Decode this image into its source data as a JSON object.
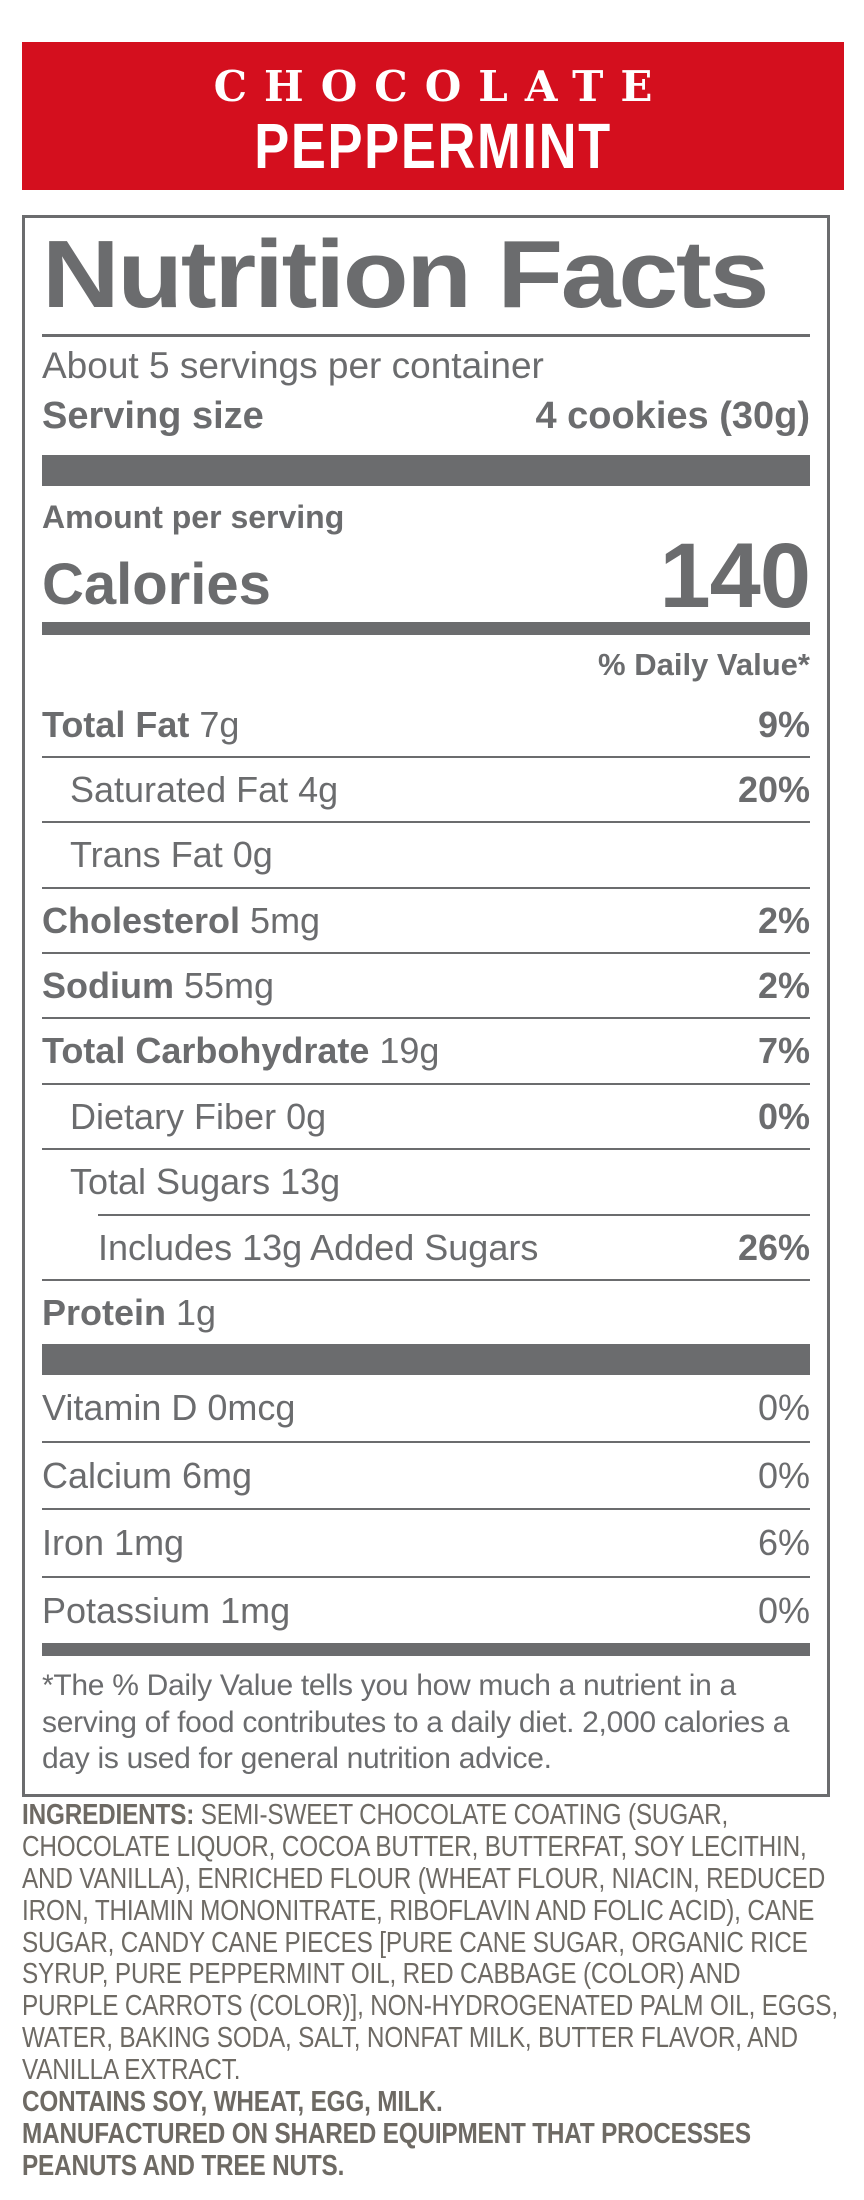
{
  "banner": {
    "line1": "CHOCOLATE",
    "line2": "PEPPERMINT",
    "bg_color": "#d40f1e",
    "text_color": "#ffffff"
  },
  "label": {
    "title": "Nutrition Facts",
    "servings_per_container": "About 5 servings per container",
    "serving_size_label": "Serving size",
    "serving_size_value": "4 cookies (30g)",
    "amount_per_serving": "Amount per serving",
    "calories_label": "Calories",
    "calories_value": "140",
    "daily_value_header": "% Daily Value*",
    "text_color": "#6b6c6e",
    "rows": [
      {
        "name": "Total Fat",
        "amount": "7g",
        "dv": "9%",
        "bold": true,
        "indent": 0
      },
      {
        "name": "Saturated Fat",
        "amount": "4g",
        "dv": "20%",
        "bold": false,
        "indent": 1
      },
      {
        "name": "Trans Fat",
        "amount": "0g",
        "dv": "",
        "bold": false,
        "indent": 1
      },
      {
        "name": "Cholesterol",
        "amount": "5mg",
        "dv": "2%",
        "bold": true,
        "indent": 0
      },
      {
        "name": "Sodium",
        "amount": "55mg",
        "dv": "2%",
        "bold": true,
        "indent": 0
      },
      {
        "name": "Total Carbohydrate",
        "amount": "19g",
        "dv": "7%",
        "bold": true,
        "indent": 0
      },
      {
        "name": "Dietary Fiber",
        "amount": "0g",
        "dv": "0%",
        "bold": false,
        "indent": 1
      },
      {
        "name": "Total Sugars",
        "amount": "13g",
        "dv": "",
        "bold": false,
        "indent": 1
      },
      {
        "name": "Includes 13g Added Sugars",
        "amount": "",
        "dv": "26%",
        "bold": false,
        "indent": 2,
        "indented_rule": true
      },
      {
        "name": "Protein",
        "amount": "1g",
        "dv": "",
        "bold": true,
        "indent": 0
      }
    ],
    "vitamins": [
      {
        "name": "Vitamin D",
        "amount": "0mcg",
        "dv": "0%"
      },
      {
        "name": "Calcium",
        "amount": "6mg",
        "dv": "0%"
      },
      {
        "name": "Iron",
        "amount": "1mg",
        "dv": "6%"
      },
      {
        "name": "Potassium",
        "amount": "1mg",
        "dv": "0%"
      }
    ],
    "footnote": "*The % Daily Value tells you how much a nutrient in a serving of food contributes to a daily diet. 2,000 calories a day is used for general nutrition advice."
  },
  "ingredients": {
    "label": "INGREDIENTS:",
    "text": " SEMI-SWEET CHOCOLATE COATING (SUGAR, CHOCOLATE LIQUOR, COCOA BUTTER, BUTTERFAT, SOY LECITHIN, AND VANILLA), ENRICHED FLOUR (WHEAT FLOUR, NIACIN, REDUCED IRON, THIAMIN MONONITRATE, RIBOFLAVIN AND FOLIC ACID), CANE SUGAR, CANDY CANE PIECES [PURE CANE SUGAR, ORGANIC RICE SYRUP, PURE PEPPERMINT OIL, RED CABBAGE (COLOR) AND PURPLE CARROTS (COLOR)], NON-HYDROGENATED PALM OIL, EGGS, WATER, BAKING SODA, SALT, NONFAT MILK, BUTTER FLAVOR, AND VANILLA EXTRACT.",
    "contains": "CONTAINS SOY, WHEAT, EGG, MILK.",
    "allergen_notice": "MANUFACTURED ON SHARED EQUIPMENT THAT PROCESSES PEANUTS AND TREE NUTS.",
    "text_color": "#6e6a64"
  }
}
